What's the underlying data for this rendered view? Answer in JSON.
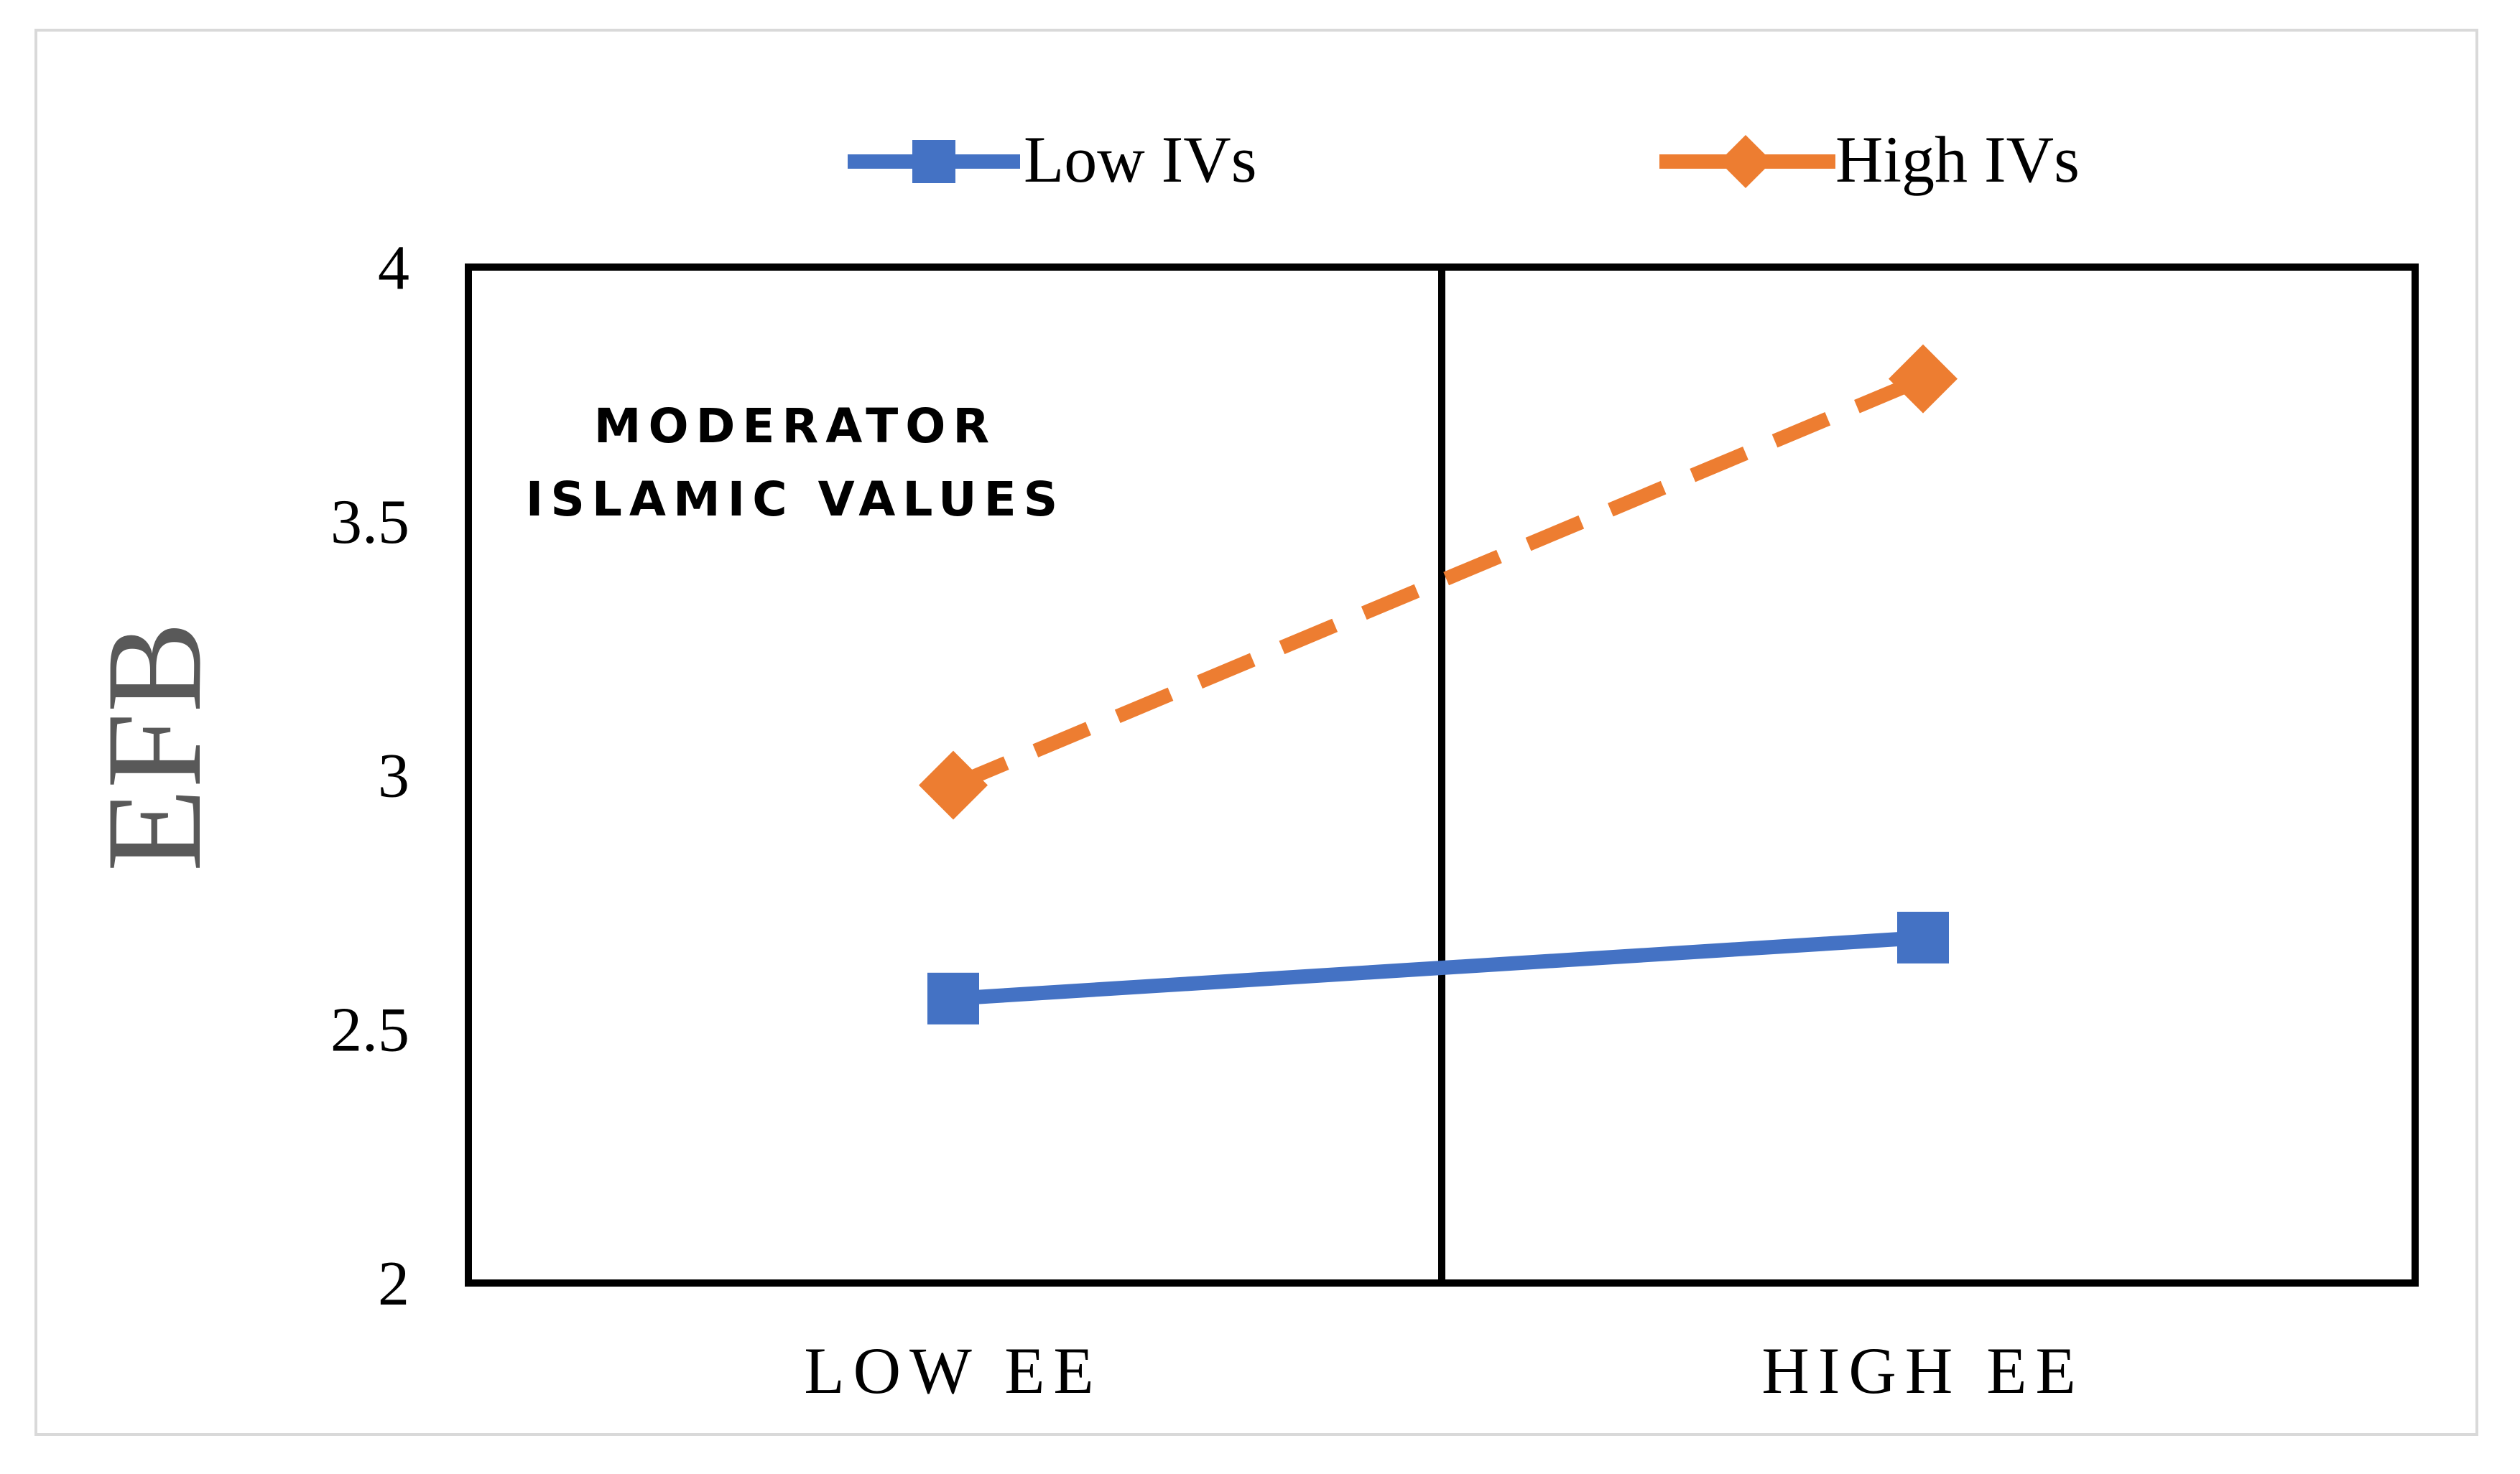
{
  "chart_data": {
    "type": "line",
    "title": "",
    "xlabel": "",
    "ylabel": "EFB",
    "categories": [
      "LOW EE",
      "HIGH EE"
    ],
    "ylim": [
      2,
      4
    ],
    "yticks": [
      "2",
      "2.5",
      "3",
      "3.5",
      "4"
    ],
    "ytick_values": [
      2,
      2.5,
      3,
      3.5,
      4
    ],
    "annotation": {
      "line1": "MODERATOR",
      "line2": "ISLAMIC VALUES"
    },
    "legend_position": "top",
    "series": [
      {
        "name": "Low IVs",
        "values": [
          2.56,
          2.68
        ],
        "color": "#4472C4",
        "marker": "square",
        "dash": "solid"
      },
      {
        "name": "High IVs",
        "values": [
          2.98,
          3.78
        ],
        "color": "#ED7D31",
        "marker": "diamond",
        "dash": "dashed"
      }
    ],
    "grid": false,
    "center_divider": true
  }
}
